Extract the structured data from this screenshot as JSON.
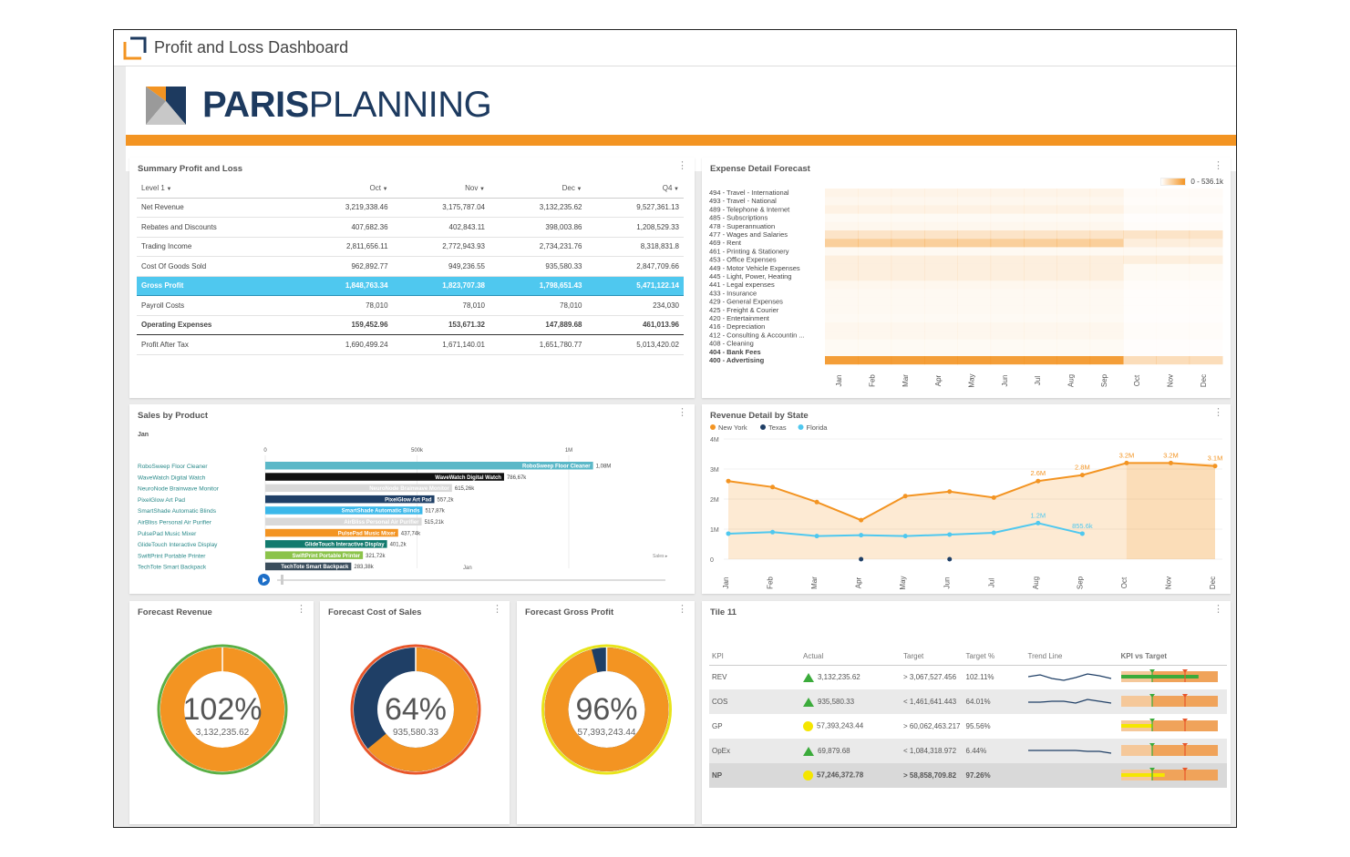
{
  "app": {
    "title": "Profit and Loss Dashboard"
  },
  "brand": {
    "bold": "PARIS",
    "light": "PLANNING",
    "accent": "#f39422",
    "navy": "#1d3a5f"
  },
  "pl": {
    "title": "Summary Profit and Loss",
    "columns": [
      "Level 1",
      "Oct",
      "Nov",
      "Dec",
      "Q4"
    ],
    "rows": [
      {
        "label": "Net Revenue",
        "values": [
          "3,219,338.46",
          "3,175,787.04",
          "3,132,235.62",
          "9,527,361.13"
        ],
        "style": ""
      },
      {
        "label": "Rebates and Discounts",
        "values": [
          "407,682.36",
          "402,843.11",
          "398,003.86",
          "1,208,529.33"
        ],
        "style": ""
      },
      {
        "label": "Trading Income",
        "values": [
          "2,811,656.11",
          "2,772,943.93",
          "2,734,231.76",
          "8,318,831.8"
        ],
        "style": ""
      },
      {
        "label": "Cost Of Goods Sold",
        "values": [
          "962,892.77",
          "949,236.55",
          "935,580.33",
          "2,847,709.66"
        ],
        "style": ""
      },
      {
        "label": "Gross Profit",
        "values": [
          "1,848,763.34",
          "1,823,707.38",
          "1,798,651.43",
          "5,471,122.14"
        ],
        "style": "hl"
      },
      {
        "label": "Payroll Costs",
        "values": [
          "78,010",
          "78,010",
          "78,010",
          "234,030"
        ],
        "style": ""
      },
      {
        "label": "Operating Expenses",
        "values": [
          "159,452.96",
          "153,671.32",
          "147,889.68",
          "461,013.96"
        ],
        "style": "bold"
      },
      {
        "label": "Profit After Tax",
        "values": [
          "1,690,499.24",
          "1,671,140.01",
          "1,651,780.77",
          "5,013,420.02"
        ],
        "style": ""
      }
    ]
  },
  "expense": {
    "title": "Expense Detail Forecast",
    "legend": "0 - 536.1k",
    "accounts": [
      "494 - Travel - International",
      "493 - Travel - National",
      "489 - Telephone & Internet",
      "485 - Subscriptions",
      "478 - Superannuation",
      "477 - Wages and Salaries",
      "469 - Rent",
      "461 - Printing & Stationery",
      "453 - Office Expenses",
      "449 - Motor Vehicle Expenses",
      "445 - Light, Power, Heating",
      "441 - Legal expenses",
      "433 - Insurance",
      "429 - General Expenses",
      "425 - Freight & Courier",
      "420 - Entertainment",
      "416 - Depreciation",
      "412 - Consulting & Accountin ...",
      "408 - Cleaning",
      "404 - Bank Fees",
      "400 - Advertising"
    ],
    "months": [
      "Jan",
      "Feb",
      "Mar",
      "Apr",
      "May",
      "Jun",
      "Jul",
      "Aug",
      "Sep",
      "Oct",
      "Nov",
      "Dec"
    ]
  },
  "sales": {
    "title": "Sales by Product",
    "period": "Jan",
    "ticks": [
      "0",
      "500k",
      "1M"
    ],
    "footer_label": "Sales ▸",
    "slider_label": "Jan"
  },
  "revenue": {
    "title": "Revenue Detail by State",
    "yticks": [
      "4M",
      "3M",
      "2M",
      "1M",
      "0"
    ]
  },
  "donuts": [
    {
      "title": "Forecast Revenue",
      "pct": "102%",
      "value": "3,132,235.62",
      "fraction": 1.0,
      "ring": "#5ab046",
      "arc": "#f39422",
      "rest": "#f39422"
    },
    {
      "title": "Forecast Cost of Sales",
      "pct": "64%",
      "value": "935,580.33",
      "fraction": 0.64,
      "ring": "#e8562a",
      "arc": "#f39422",
      "rest": "#1f3f66"
    },
    {
      "title": "Forecast Gross Profit",
      "pct": "96%",
      "value": "57,393,243.44",
      "fraction": 0.96,
      "ring": "#e8e41a",
      "arc": "#f39422",
      "rest": "#1f3f66"
    }
  ],
  "kpi": {
    "title": "Tile 11",
    "columns": [
      "KPI",
      "Actual",
      "Target",
      "Target %",
      "Trend Line",
      "KPI vs Target"
    ],
    "rows": [
      {
        "kpi": "REV",
        "status": "up",
        "actual": "3,132,235.62",
        "target": "> 3,067,527.456",
        "pct": "102.11%"
      },
      {
        "kpi": "COS",
        "status": "up",
        "actual": "935,580.33",
        "target": "< 1,461,641.443",
        "pct": "64.01%"
      },
      {
        "kpi": "GP",
        "status": "warn",
        "actual": "57,393,243.44",
        "target": "> 60,062,463.217",
        "pct": "95.56%"
      },
      {
        "kpi": "OpEx",
        "status": "up",
        "actual": "69,879.68",
        "target": "< 1,084,318.972",
        "pct": "6.44%"
      },
      {
        "kpi": "NP",
        "status": "warn",
        "actual": "57,246,372.78",
        "target": "> 58,858,709.82",
        "pct": "97.26%"
      }
    ]
  },
  "chart_data": [
    {
      "type": "bar",
      "title": "Sales by Product",
      "categories": [
        "RoboSweep Floor Cleaner",
        "WaveWatch Digital Watch",
        "NeuroNode Brainwave Monitor",
        "PixelGlow Art Pad",
        "SmartShade Automatic Blinds",
        "AirBliss Personal Air Purifier",
        "PulsePad Music Mixer",
        "GlideTouch Interactive Display",
        "SwiftPrint Portable Printer",
        "TechTote Smart Backpack"
      ],
      "values": [
        1080000,
        786670,
        615260,
        557200,
        517870,
        515210,
        437740,
        401200,
        321720,
        283380
      ],
      "data_labels": [
        "1,08M",
        "786,67k",
        "615,26k",
        "557,2k",
        "517,87k",
        "515,21k",
        "437,74k",
        "401,2k",
        "321,72k",
        "283,38k"
      ],
      "colors": [
        "#5bb8c8",
        "#111111",
        "#d9d9d9",
        "#1f3f66",
        "#3bb8ea",
        "#d9d9d9",
        "#f39422",
        "#127a6e",
        "#8bc34a",
        "#3a4d5c"
      ],
      "xlim": [
        0,
        1200000
      ]
    },
    {
      "type": "line",
      "title": "Revenue Detail by State",
      "x": [
        "Jan",
        "Feb",
        "Mar",
        "Apr",
        "May",
        "Jun",
        "Jul",
        "Aug",
        "Sep",
        "Oct",
        "Nov",
        "Dec"
      ],
      "series": [
        {
          "name": "New York",
          "color": "#f39422",
          "values": [
            2.6,
            2.4,
            1.9,
            1.3,
            2.1,
            2.25,
            2.05,
            2.6,
            2.8,
            3.2,
            3.2,
            3.1
          ],
          "labels": [
            "",
            "",
            "",
            "",
            "",
            "",
            "",
            "2.6M",
            "2.8M",
            "3.2M",
            "3.2M",
            "3.1M"
          ]
        },
        {
          "name": "Texas",
          "color": "#1f3f66",
          "values": [
            null,
            null,
            null,
            0.0,
            null,
            0.0,
            null,
            null,
            null,
            null,
            null,
            null
          ],
          "labels": []
        },
        {
          "name": "Florida",
          "color": "#4fc8ef",
          "values": [
            0.85,
            0.9,
            0.77,
            0.8,
            0.77,
            0.82,
            0.88,
            1.2,
            0.85,
            null,
            null,
            null
          ],
          "labels": [
            "",
            "",
            "",
            "",
            "",
            "",
            "",
            "1.2M",
            "855.6k",
            "",
            "",
            ""
          ]
        }
      ],
      "ylim": [
        0,
        4
      ],
      "legend": "top-left"
    },
    {
      "type": "heatmap",
      "title": "Expense Detail Forecast",
      "rows": [
        "494",
        "493",
        "489",
        "485",
        "478",
        "477",
        "469",
        "461",
        "453",
        "449",
        "445",
        "441",
        "433",
        "429",
        "425",
        "420",
        "416",
        "412",
        "408",
        "404",
        "400"
      ],
      "columns": [
        "Jan",
        "Feb",
        "Mar",
        "Apr",
        "May",
        "Jun",
        "Jul",
        "Aug",
        "Sep",
        "Oct",
        "Nov",
        "Dec"
      ],
      "row_intensity": [
        0.1,
        0.08,
        0.12,
        0.05,
        0.08,
        0.25,
        0.45,
        0.06,
        0.15,
        0.15,
        0.15,
        0.08,
        0.06,
        0.06,
        0.06,
        0.05,
        0.08,
        0.08,
        0.05,
        0.05,
        0.9
      ],
      "scale": [
        0,
        536100
      ]
    }
  ]
}
